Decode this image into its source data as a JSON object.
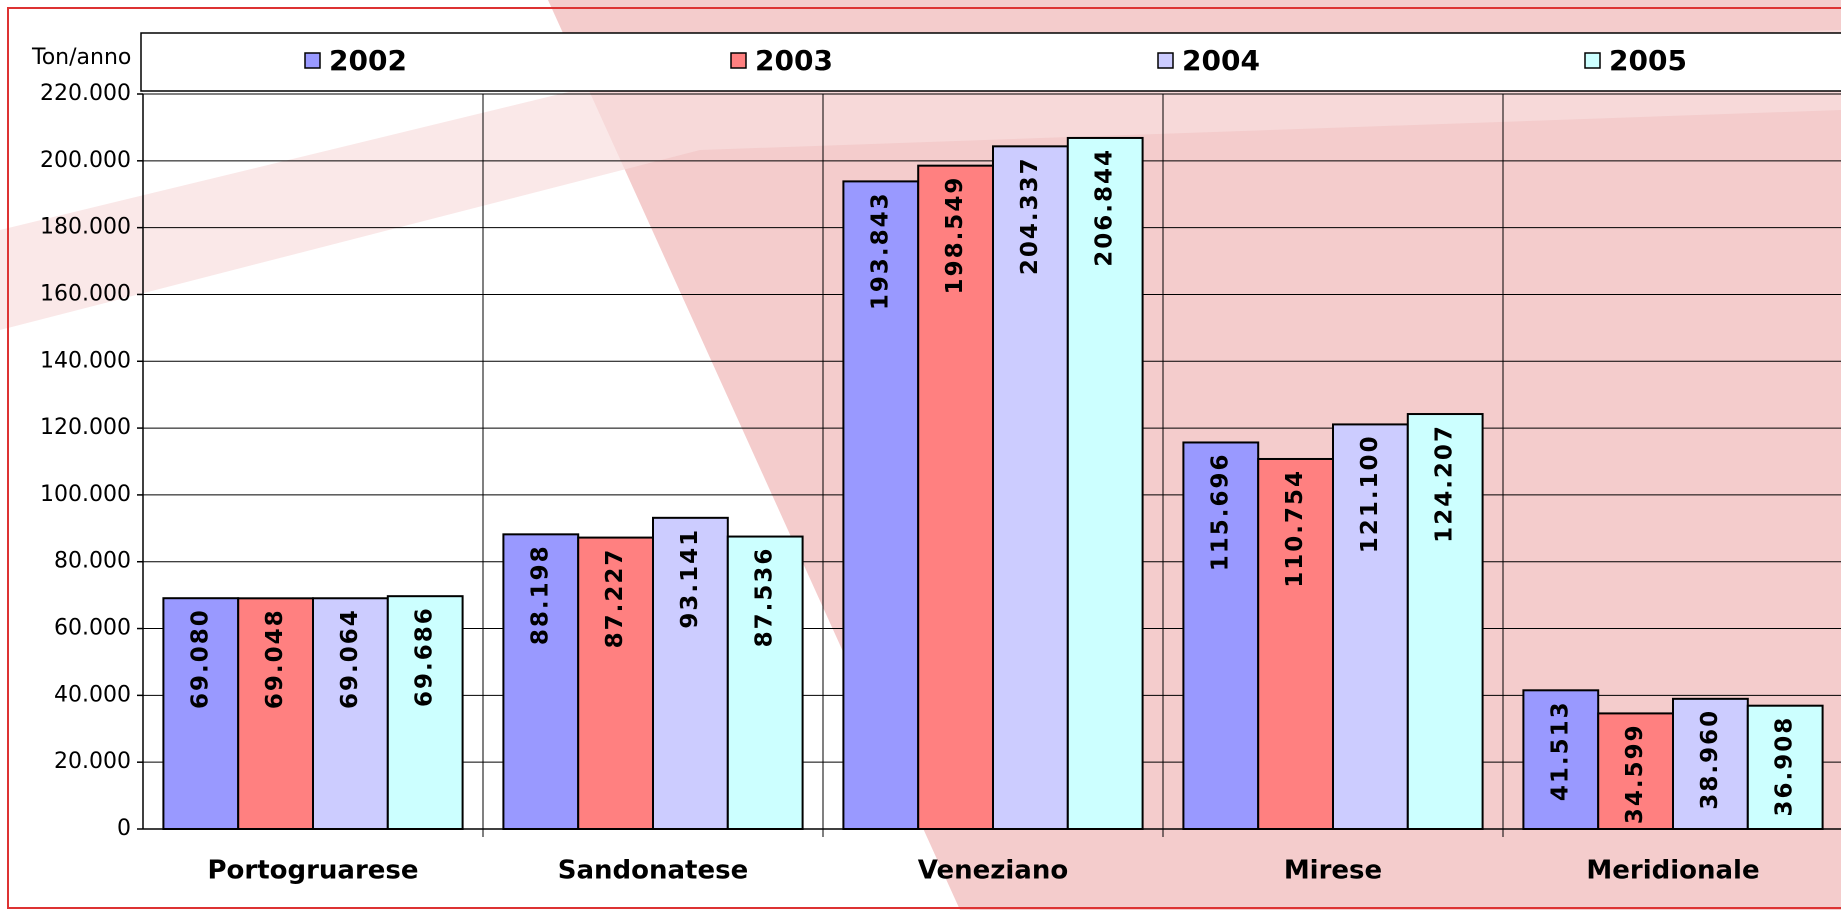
{
  "chart_data": {
    "type": "bar",
    "y_label": "Ton/anno",
    "categories": [
      "Portogruarese",
      "Sandonatese",
      "Veneziano",
      "Mirese",
      "Meridionale"
    ],
    "series": [
      {
        "name": "2002",
        "color": "#9999ff",
        "values": [
          69080,
          88198,
          193843,
          115696,
          41513
        ],
        "value_labels": [
          "69.080",
          "88.198",
          "193.843",
          "115.696",
          "41.513"
        ]
      },
      {
        "name": "2003",
        "color": "#ff8080",
        "values": [
          69048,
          87227,
          198549,
          110754,
          34599
        ],
        "value_labels": [
          "69.048",
          "87.227",
          "198.549",
          "110.754",
          "34.599"
        ]
      },
      {
        "name": "2004",
        "color": "#ccccff",
        "values": [
          69064,
          93141,
          204337,
          121100,
          38960
        ],
        "value_labels": [
          "69.064",
          "93.141",
          "204.337",
          "121.100",
          "38.960"
        ]
      },
      {
        "name": "2005",
        "color": "#ccffff",
        "values": [
          69686,
          87536,
          206844,
          124207,
          36908
        ],
        "value_labels": [
          "69.686",
          "87.536",
          "206.844",
          "124.207",
          "36.908"
        ]
      }
    ],
    "ylim": [
      0,
      220000
    ],
    "yticks": [
      0,
      {
        "value": 20000,
        "label": "20.000"
      },
      {
        "value": 40000,
        "label": "40.000"
      },
      {
        "value": 60000,
        "label": "60.000"
      },
      {
        "value": 80000,
        "label": "80.000"
      },
      {
        "value": 100000,
        "label": "100.000"
      },
      {
        "value": 120000,
        "label": "120.000"
      },
      {
        "value": 140000,
        "label": "140.000"
      },
      {
        "value": 160000,
        "label": "160.000"
      },
      {
        "value": 180000,
        "label": "180.000"
      },
      {
        "value": 200000,
        "label": "200.000"
      },
      {
        "value": 220000,
        "label": "220.000"
      }
    ],
    "grid": true,
    "legend": "top"
  }
}
